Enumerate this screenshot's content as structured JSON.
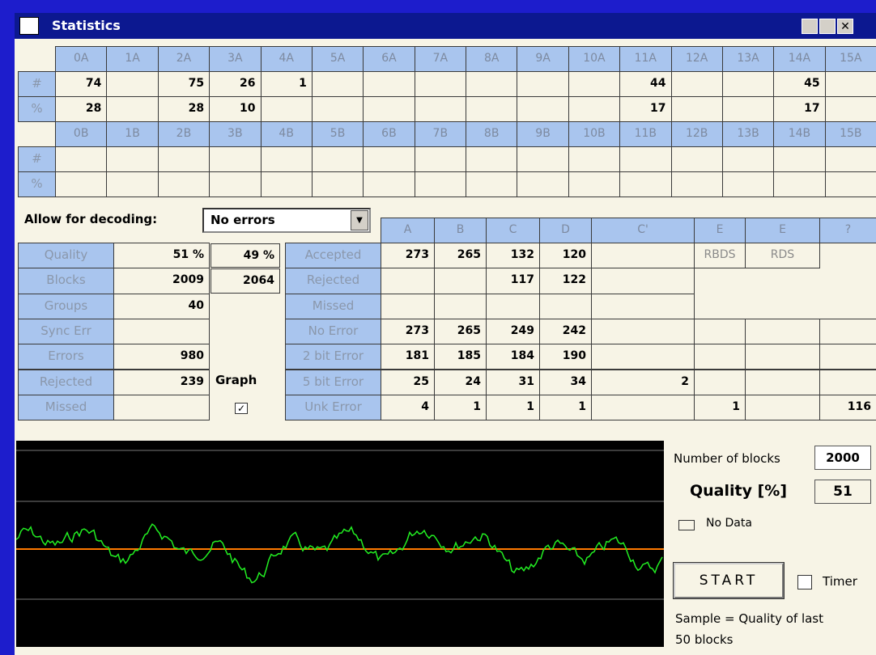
{
  "window": {
    "title": "Statistics"
  },
  "grid_a": {
    "headers": [
      "0A",
      "1A",
      "2A",
      "3A",
      "4A",
      "5A",
      "6A",
      "7A",
      "8A",
      "9A",
      "10A",
      "11A",
      "12A",
      "13A",
      "14A",
      "15A"
    ],
    "row_labels": [
      "#",
      "%"
    ],
    "rows": [
      [
        74,
        null,
        75,
        26,
        1,
        null,
        null,
        null,
        null,
        null,
        null,
        44,
        null,
        null,
        45,
        null
      ],
      [
        28,
        null,
        28,
        10,
        null,
        null,
        null,
        null,
        null,
        null,
        null,
        17,
        null,
        null,
        17,
        null
      ]
    ]
  },
  "grid_b": {
    "headers": [
      "0B",
      "1B",
      "2B",
      "3B",
      "4B",
      "5B",
      "6B",
      "7B",
      "8B",
      "9B",
      "10B",
      "11B",
      "12B",
      "13B",
      "14B",
      "15B"
    ],
    "row_labels": [
      "#",
      "%"
    ],
    "rows": [
      [
        null,
        null,
        null,
        null,
        null,
        null,
        null,
        null,
        null,
        null,
        null,
        null,
        null,
        null,
        null,
        null
      ],
      [
        null,
        null,
        null,
        null,
        null,
        null,
        null,
        null,
        null,
        null,
        null,
        null,
        null,
        null,
        null,
        null
      ]
    ]
  },
  "decoding": {
    "label": "Allow for decoding:",
    "selected": "No errors"
  },
  "summary": [
    {
      "label": "Quality",
      "value": "51 %",
      "value2": "49 %"
    },
    {
      "label": "Blocks",
      "value": 2009,
      "value2": 2064
    },
    {
      "label": "Groups",
      "value": 40,
      "value2": null
    },
    {
      "label": "Sync Err",
      "value": null,
      "value2": null
    },
    {
      "label": "Errors",
      "value": 980,
      "value2": null
    },
    {
      "label": "Rejected",
      "value": 239,
      "value2": null
    },
    {
      "label": "Missed",
      "value": null,
      "value2": null
    }
  ],
  "graph_label": "Graph",
  "errors": {
    "headers": [
      "A",
      "B",
      "C",
      "D",
      "C'",
      "E",
      "E",
      "?"
    ],
    "rows": [
      {
        "label": "Accepted",
        "cells": [
          273,
          265,
          132,
          120,
          null,
          "RBDS",
          "RDS",
          null
        ]
      },
      {
        "label": "Rejected",
        "cells": [
          null,
          null,
          117,
          122,
          null,
          null,
          null,
          null
        ]
      },
      {
        "label": "Missed",
        "cells": [
          null,
          null,
          null,
          null,
          null,
          null,
          null,
          null
        ]
      },
      {
        "label": "No Error",
        "cells": [
          273,
          265,
          249,
          242,
          null,
          null,
          null,
          null
        ]
      },
      {
        "label": "2 bit Error",
        "cells": [
          181,
          185,
          184,
          190,
          null,
          null,
          null,
          null
        ]
      },
      {
        "label": "5 bit Error",
        "cells": [
          25,
          24,
          31,
          34,
          2,
          null,
          null,
          null
        ]
      },
      {
        "label": "Unk Error",
        "cells": [
          4,
          1,
          1,
          1,
          null,
          1,
          null,
          116
        ]
      }
    ]
  },
  "panel": {
    "blocks_label": "Number of blocks",
    "blocks_value": 2000,
    "quality_label": "Quality [%]",
    "quality_value": 51,
    "no_data": "No Data",
    "start": "START",
    "timer": "Timer",
    "sample_note": "Sample = Quality of last 50 blocks"
  }
}
